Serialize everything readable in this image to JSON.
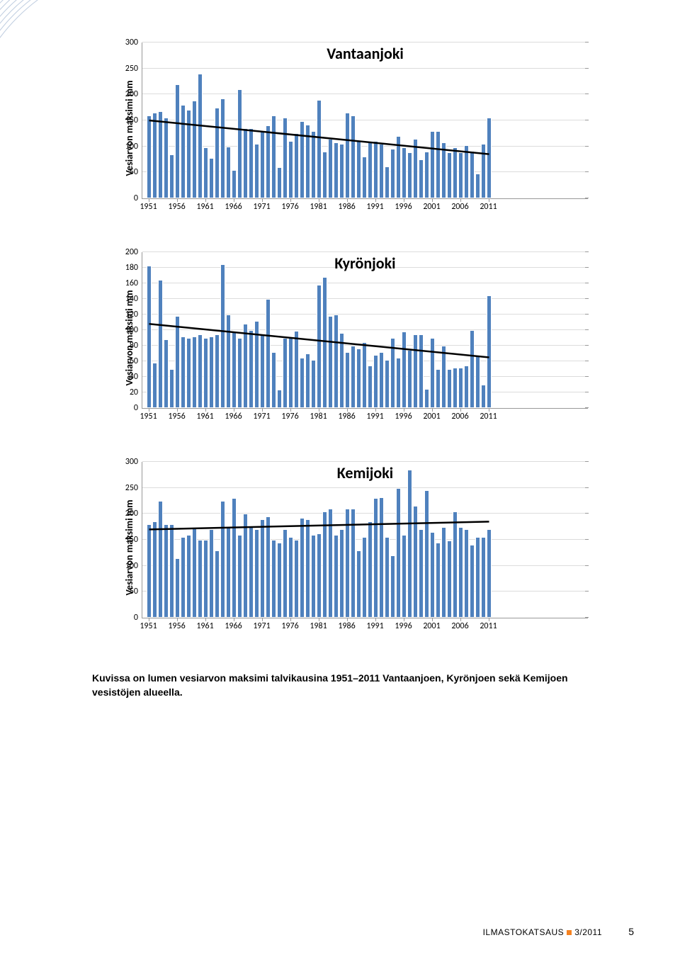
{
  "page": {
    "background_color": "#ffffff",
    "corner_arc_color": "#bfcde0",
    "footer_text": "ILMASTOKATSAUS",
    "footer_issue": "3/2011",
    "footer_accent": "#f58220",
    "page_number": "5"
  },
  "caption": "Kuvissa on lumen vesiarvon maksimi talvikausina 1951–2011 Vantaanjoen, Kyrönjoen sekä Kemijoen vesistöjen alueella.",
  "x_labels": [
    "1951",
    "1956",
    "1961",
    "1966",
    "1971",
    "1976",
    "1981",
    "1986",
    "1991",
    "1996",
    "2001",
    "2006",
    "2011"
  ],
  "charts": [
    {
      "id": "vantaanjoki",
      "title": "Vantaanjoki",
      "ylabel": "Vesiarvon maksimi  mm",
      "type": "bar",
      "bar_color": "#4f81bd",
      "grid_color": "#dcdcdc",
      "axis_color": "#999999",
      "trend_color": "#000000",
      "title_fontsize": 22,
      "label_fontsize": 14,
      "tick_fontsize": 12,
      "ylim": [
        0,
        300
      ],
      "ytick_step": 50,
      "trend": {
        "y_start": 150,
        "y_end": 85
      },
      "values": [
        160,
        165,
        168,
        155,
        85,
        220,
        180,
        170,
        188,
        240,
        98,
        78,
        175,
        192,
        100,
        55,
        210,
        135,
        135,
        105,
        128,
        140,
        160,
        60,
        155,
        110,
        125,
        148,
        142,
        130,
        190,
        90,
        115,
        108,
        105,
        165,
        160,
        110,
        80,
        110,
        110,
        105,
        62,
        95,
        120,
        98,
        88,
        115,
        75,
        90,
        130,
        130,
        108,
        88,
        98,
        88,
        102,
        92,
        48,
        105,
        155
      ]
    },
    {
      "id": "kyronjoki",
      "title": "Kyrönjoki",
      "ylabel": "Vesiarvon maksimi  mm",
      "type": "bar",
      "bar_color": "#4f81bd",
      "grid_color": "#dcdcdc",
      "axis_color": "#999999",
      "trend_color": "#000000",
      "title_fontsize": 22,
      "label_fontsize": 14,
      "tick_fontsize": 12,
      "ylim": [
        0,
        200
      ],
      "ytick_step": 20,
      "trend": {
        "y_start": 108,
        "y_end": 65
      },
      "values": [
        183,
        58,
        165,
        88,
        50,
        118,
        92,
        90,
        92,
        95,
        90,
        92,
        95,
        185,
        120,
        99,
        90,
        108,
        100,
        112,
        95,
        140,
        72,
        24,
        90,
        90,
        99,
        65,
        70,
        62,
        158,
        168,
        118,
        120,
        96,
        72,
        80,
        76,
        85,
        55,
        68,
        72,
        62,
        90,
        65,
        98,
        75,
        95,
        95,
        25,
        90,
        50,
        80,
        50,
        52,
        52,
        55,
        100,
        68,
        30,
        145
      ]
    },
    {
      "id": "kemijoki",
      "title": "Kemijoki",
      "ylabel": "Vesiarvon maksimi  mm",
      "type": "bar",
      "bar_color": "#4f81bd",
      "grid_color": "#dcdcdc",
      "axis_color": "#999999",
      "trend_color": "#000000",
      "title_fontsize": 22,
      "label_fontsize": 14,
      "tick_fontsize": 12,
      "ylim": [
        0,
        300
      ],
      "ytick_step": 50,
      "trend": {
        "y_start": 170,
        "y_end": 185
      },
      "values": [
        180,
        185,
        225,
        180,
        180,
        115,
        155,
        160,
        175,
        150,
        150,
        170,
        130,
        225,
        175,
        230,
        160,
        200,
        175,
        170,
        190,
        195,
        150,
        145,
        170,
        155,
        150,
        192,
        190,
        160,
        162,
        205,
        210,
        160,
        170,
        210,
        210,
        130,
        155,
        185,
        230,
        232,
        155,
        120,
        250,
        160,
        285,
        215,
        170,
        245,
        165,
        145,
        175,
        148,
        205,
        175,
        170,
        140,
        155,
        155,
        170
      ]
    }
  ]
}
